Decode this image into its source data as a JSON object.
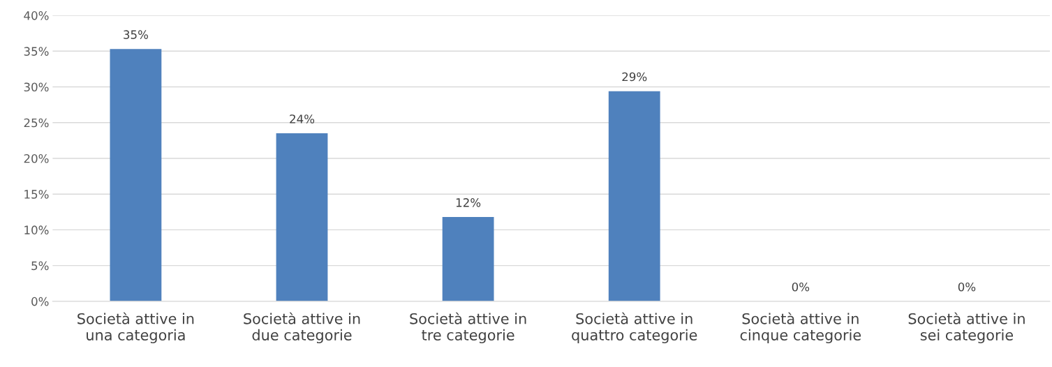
{
  "chart_data": {
    "type": "bar",
    "categories": [
      "Società attive in\nuna categoria",
      "Società attive in\ndue categorie",
      "Società attive in\ntre categorie",
      "Società attive in\nquattro categorie",
      "Società attive in\ncinque categorie",
      "Società attive in\nsei categorie"
    ],
    "values": [
      35.3,
      23.5,
      11.8,
      29.4,
      0,
      0
    ],
    "value_labels": [
      "35%",
      "24%",
      "12%",
      "29%",
      "0%",
      "0%"
    ],
    "color": "#4f81bd",
    "ylim": [
      0,
      40
    ],
    "yticks": [
      {
        "value": 0,
        "label": "0%"
      },
      {
        "value": 5,
        "label": "5%"
      },
      {
        "value": 10,
        "label": "10%"
      },
      {
        "value": 15,
        "label": "15%"
      },
      {
        "value": 20,
        "label": "20%"
      },
      {
        "value": 25,
        "label": "25%"
      },
      {
        "value": 30,
        "label": "30%"
      },
      {
        "value": 35,
        "label": "35%"
      },
      {
        "value": 40,
        "label": "40%"
      }
    ],
    "grid": "y"
  }
}
